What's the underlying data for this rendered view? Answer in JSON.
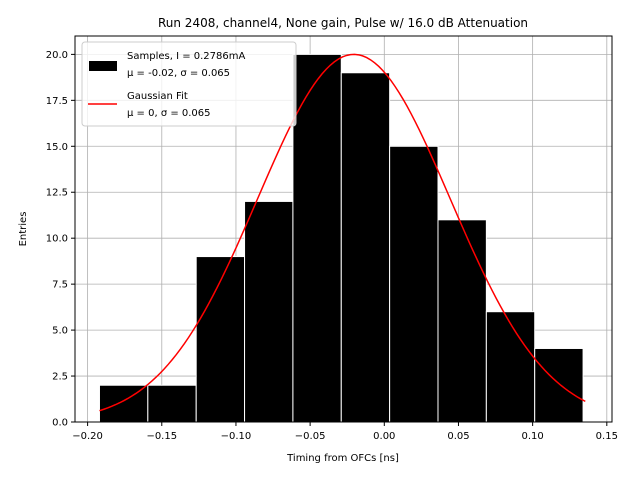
{
  "chart_data": {
    "type": "bar",
    "title": "Run 2408, channel4, None gain, Pulse w/ 16.0 dB Attenuation",
    "xlabel": "Timing from OFCs [ns]",
    "ylabel": "Entries",
    "xlim": [
      -0.2085,
      0.1535
    ],
    "ylim": [
      0,
      21
    ],
    "grid": true,
    "legend_position": "top-left",
    "xticks": [
      -0.2,
      -0.15,
      -0.1,
      -0.05,
      0.0,
      0.05,
      0.1,
      0.15
    ],
    "xtick_labels": [
      "−0.20",
      "−0.15",
      "−0.10",
      "−0.05",
      "0.00",
      "0.05",
      "0.10",
      "0.15"
    ],
    "yticks": [
      0,
      2.5,
      5,
      7.5,
      10,
      12.5,
      15,
      17.5,
      20
    ],
    "ytick_labels": [
      "0.0",
      "2.5",
      "5.0",
      "7.5",
      "10.0",
      "12.5",
      "15.0",
      "17.5",
      "20.0"
    ],
    "series": [
      {
        "name": "Samples, I = 0.2786mA",
        "legend_line2": "μ = -0.02, σ = 0.065",
        "kind": "histogram",
        "color": "#000000",
        "bin_edges": [
          -0.192,
          -0.1594,
          -0.1268,
          -0.0942,
          -0.0616,
          -0.029,
          0.0036,
          0.0362,
          0.0688,
          0.1014,
          0.134
        ],
        "values": [
          2,
          2,
          9,
          12,
          20,
          19,
          15,
          11,
          6,
          4
        ]
      },
      {
        "name": "Gaussian Fit",
        "legend_line2": "μ = 0, σ = 0.065",
        "kind": "line",
        "color": "#ff0000",
        "amplitude": 20.0,
        "mean": -0.0205,
        "sigma": 0.065,
        "x_range": [
          -0.192,
          0.1355
        ]
      }
    ]
  }
}
